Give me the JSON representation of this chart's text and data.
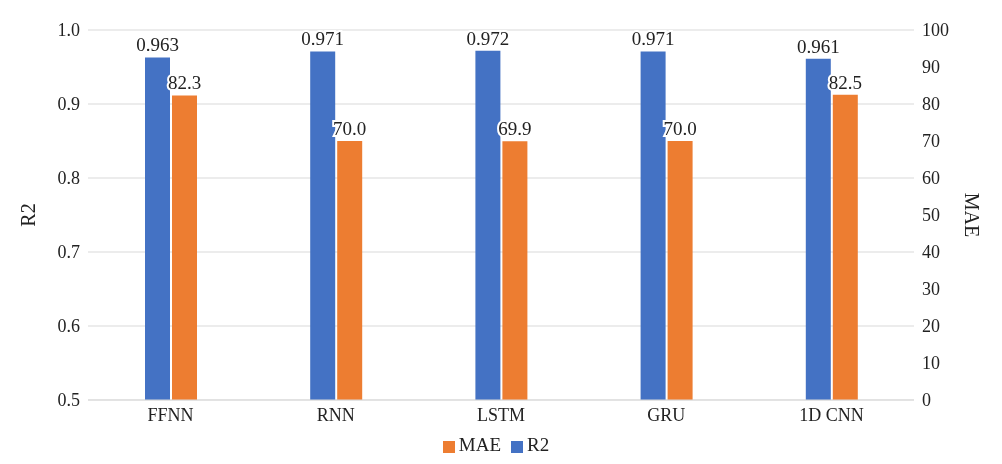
{
  "chart_data": {
    "type": "bar",
    "categories": [
      "FFNN",
      "RNN",
      "LSTM",
      "GRU",
      "1D CNN"
    ],
    "ylabel": "R2",
    "y2label": "MAE",
    "ylim": [
      0.5,
      1.0
    ],
    "yticks": [
      0.5,
      0.6,
      0.7,
      0.8,
      0.9,
      {
        "value": 1.0,
        "label": "1.0"
      }
    ],
    "y2lim": [
      0,
      100
    ],
    "y2ticks": [
      0,
      10,
      20,
      30,
      40,
      50,
      60,
      70,
      80,
      90,
      100
    ],
    "grid": "y",
    "legend": "bottom",
    "series": [
      {
        "name": "R2",
        "color": "#4472c4",
        "values": [
          0.963,
          0.971,
          0.972,
          0.971,
          0.961
        ],
        "value_labels": [
          "0.963",
          "0.971",
          "0.972",
          "0.971",
          "0.961"
        ]
      },
      {
        "name": "MAE",
        "color": "#ed7d31",
        "axis": "y2",
        "values": [
          82.3,
          70.0,
          69.9,
          70.0,
          82.5
        ],
        "value_labels": [
          "82.3",
          "70.0",
          "69.9",
          "70.0",
          "82.5"
        ]
      }
    ]
  }
}
